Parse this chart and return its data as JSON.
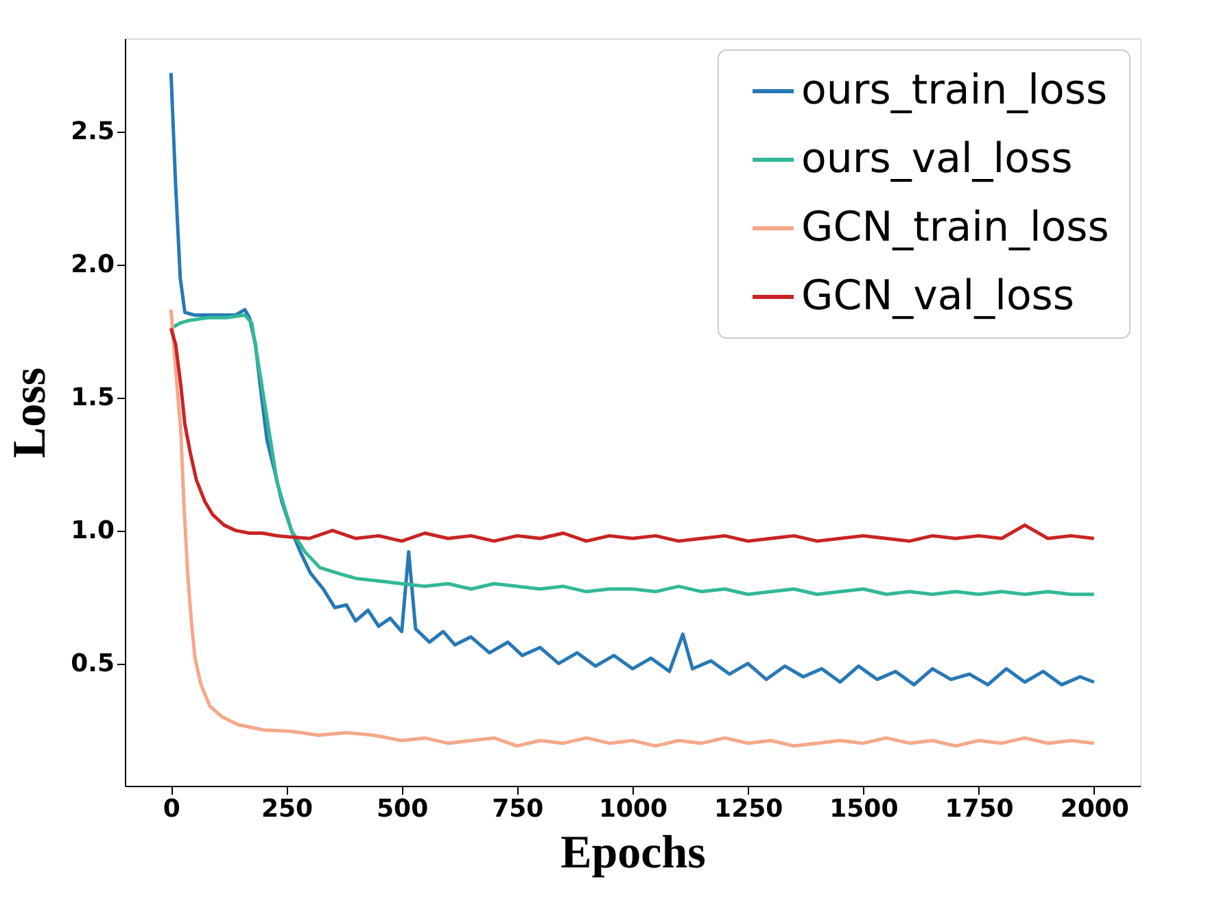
{
  "chart_data": {
    "type": "line",
    "xlabel": "Epochs",
    "ylabel": "Loss",
    "xlim": [
      -100,
      2100
    ],
    "ylim": [
      0.04,
      2.85
    ],
    "xticks": [
      0,
      250,
      500,
      750,
      1000,
      1250,
      1500,
      1750,
      2000
    ],
    "yticks": [
      {
        "value": 0.5,
        "label": "0.5"
      },
      {
        "value": 1.0,
        "label": "1.0"
      },
      {
        "value": 1.5,
        "label": "1.5"
      },
      {
        "value": 2.0,
        "label": "2.0"
      },
      {
        "value": 2.5,
        "label": "2.5"
      }
    ],
    "grid": false,
    "legend": "top right",
    "marker": "none",
    "line_style": "solid",
    "series": [
      {
        "name": "ours_train_loss",
        "color": "#2878b5",
        "x": [
          0,
          10,
          20,
          30,
          50,
          80,
          110,
          140,
          160,
          170,
          183,
          195,
          208,
          225,
          240,
          261,
          280,
          302,
          330,
          355,
          380,
          400,
          427,
          450,
          475,
          500,
          515,
          530,
          560,
          590,
          615,
          650,
          690,
          730,
          761,
          800,
          840,
          880,
          920,
          960,
          1000,
          1040,
          1080,
          1109,
          1130,
          1170,
          1210,
          1250,
          1290,
          1330,
          1370,
          1410,
          1450,
          1490,
          1530,
          1570,
          1610,
          1650,
          1690,
          1730,
          1770,
          1810,
          1850,
          1890,
          1930,
          1970,
          2000
        ],
        "values": [
          2.72,
          2.3,
          1.95,
          1.82,
          1.81,
          1.81,
          1.81,
          1.81,
          1.83,
          1.8,
          1.7,
          1.52,
          1.34,
          1.22,
          1.11,
          1.0,
          0.92,
          0.84,
          0.78,
          0.71,
          0.72,
          0.66,
          0.7,
          0.64,
          0.67,
          0.62,
          0.92,
          0.63,
          0.58,
          0.62,
          0.57,
          0.6,
          0.54,
          0.58,
          0.53,
          0.56,
          0.5,
          0.54,
          0.49,
          0.53,
          0.48,
          0.52,
          0.47,
          0.61,
          0.48,
          0.51,
          0.46,
          0.5,
          0.44,
          0.49,
          0.45,
          0.48,
          0.43,
          0.49,
          0.44,
          0.47,
          0.42,
          0.48,
          0.44,
          0.46,
          0.42,
          0.48,
          0.43,
          0.47,
          0.42,
          0.45,
          0.43
        ]
      },
      {
        "name": "ours_val_loss",
        "color": "#32b897",
        "x": [
          0,
          20,
          40,
          80,
          120,
          160,
          175,
          190,
          210,
          230,
          261,
          290,
          323,
          360,
          400,
          450,
          500,
          550,
          600,
          650,
          700,
          750,
          800,
          850,
          900,
          950,
          1000,
          1050,
          1100,
          1150,
          1200,
          1250,
          1300,
          1350,
          1400,
          1450,
          1500,
          1550,
          1600,
          1650,
          1700,
          1750,
          1800,
          1850,
          1900,
          1950,
          2000
        ],
        "values": [
          1.76,
          1.78,
          1.79,
          1.8,
          1.8,
          1.81,
          1.78,
          1.62,
          1.4,
          1.18,
          1.0,
          0.92,
          0.86,
          0.84,
          0.82,
          0.81,
          0.8,
          0.79,
          0.8,
          0.78,
          0.8,
          0.79,
          0.78,
          0.79,
          0.77,
          0.78,
          0.78,
          0.77,
          0.79,
          0.77,
          0.78,
          0.76,
          0.77,
          0.78,
          0.76,
          0.77,
          0.78,
          0.76,
          0.77,
          0.76,
          0.77,
          0.76,
          0.77,
          0.76,
          0.77,
          0.76,
          0.76
        ]
      },
      {
        "name": "GCN_train_loss",
        "color": "#f5a889",
        "x": [
          0,
          8,
          15,
          21,
          28,
          36,
          44,
          52,
          65,
          84,
          110,
          145,
          200,
          260,
          320,
          380,
          440,
          500,
          550,
          600,
          650,
          700,
          750,
          800,
          850,
          900,
          950,
          1000,
          1050,
          1100,
          1150,
          1200,
          1250,
          1300,
          1350,
          1400,
          1450,
          1500,
          1550,
          1600,
          1650,
          1700,
          1750,
          1800,
          1850,
          1900,
          1950,
          2000
        ],
        "values": [
          1.83,
          1.65,
          1.5,
          1.38,
          1.1,
          0.84,
          0.66,
          0.52,
          0.42,
          0.34,
          0.3,
          0.27,
          0.25,
          0.245,
          0.23,
          0.24,
          0.23,
          0.21,
          0.22,
          0.2,
          0.21,
          0.22,
          0.19,
          0.21,
          0.2,
          0.22,
          0.2,
          0.21,
          0.19,
          0.21,
          0.2,
          0.22,
          0.2,
          0.21,
          0.19,
          0.2,
          0.21,
          0.2,
          0.22,
          0.2,
          0.21,
          0.19,
          0.21,
          0.2,
          0.22,
          0.2,
          0.21,
          0.2
        ]
      },
      {
        "name": "GCN_val_loss",
        "color": "#c82423",
        "x": [
          0,
          10,
          21,
          30,
          42,
          55,
          73,
          90,
          115,
          140,
          170,
          198,
          230,
          260,
          300,
          350,
          400,
          450,
          500,
          550,
          600,
          650,
          700,
          750,
          800,
          850,
          900,
          950,
          1000,
          1050,
          1100,
          1150,
          1200,
          1250,
          1300,
          1350,
          1400,
          1450,
          1500,
          1550,
          1600,
          1650,
          1700,
          1750,
          1800,
          1850,
          1900,
          1950,
          2000
        ],
        "values": [
          1.76,
          1.7,
          1.55,
          1.4,
          1.29,
          1.19,
          1.11,
          1.06,
          1.02,
          1.0,
          0.99,
          0.99,
          0.98,
          0.975,
          0.97,
          1.0,
          0.97,
          0.98,
          0.96,
          0.99,
          0.97,
          0.98,
          0.96,
          0.98,
          0.97,
          0.99,
          0.96,
          0.98,
          0.97,
          0.98,
          0.96,
          0.97,
          0.98,
          0.96,
          0.97,
          0.98,
          0.96,
          0.97,
          0.98,
          0.97,
          0.96,
          0.98,
          0.97,
          0.98,
          0.97,
          1.02,
          0.97,
          0.98,
          0.97
        ]
      }
    ]
  }
}
